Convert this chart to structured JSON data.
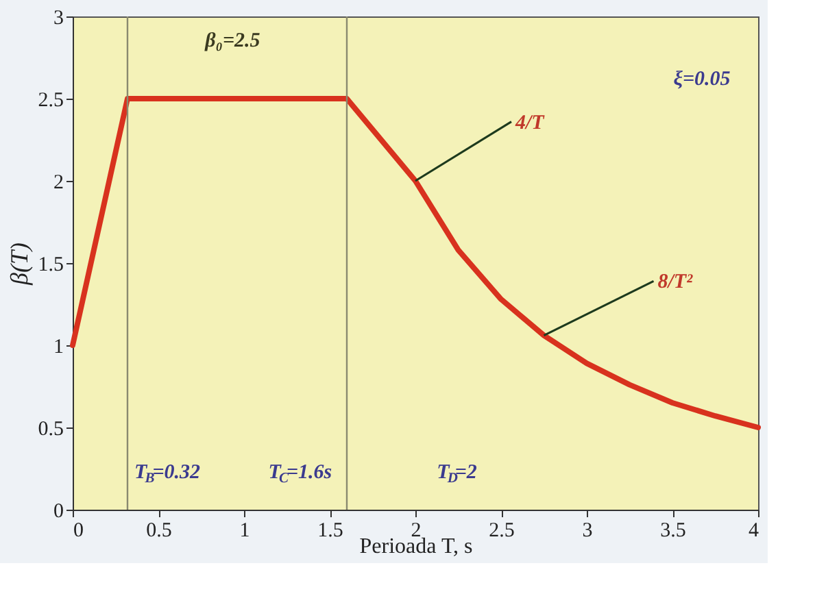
{
  "chart_data": {
    "type": "line",
    "x": [
      0,
      0.32,
      1.6,
      2,
      2.25,
      2.5,
      2.75,
      3,
      3.25,
      3.5,
      3.75,
      4
    ],
    "series": [
      {
        "color": "#d8321e",
        "values": [
          1,
          2.5,
          2.5,
          2,
          1.58,
          1.28,
          1.06,
          0.89,
          0.76,
          0.65,
          0.57,
          0.5
        ]
      }
    ],
    "xlabel": "Perioada T, s",
    "ylabel": "β(T)",
    "xlim": [
      0,
      4
    ],
    "ylim": [
      0,
      3
    ],
    "xticks": [
      0,
      0.5,
      1,
      1.5,
      2,
      2.5,
      3,
      3.5,
      4
    ],
    "yticks": [
      0,
      0.5,
      1,
      1.5,
      2,
      2.5,
      3
    ],
    "ref_lines": [
      {
        "axis": "x",
        "value": 0.32,
        "label": "T$_{B}$=0.32",
        "color": "#8a8a70"
      },
      {
        "axis": "x",
        "value": 1.6,
        "label": "T$_{C}$=1.6s",
        "color": "#8a8a70"
      }
    ],
    "annotations": [
      {
        "text": "β₀=2.5",
        "x": 0.96,
        "y": 2.5
      },
      {
        "text": "4/T",
        "x": 2,
        "y": 2
      },
      {
        "text": "8/T²",
        "x": 2.75,
        "y": 1.06
      },
      "T$_{D}$=2",
      "ξ=0.05"
    ],
    "grid": false,
    "line_style": "solid",
    "marker": "none"
  }
}
